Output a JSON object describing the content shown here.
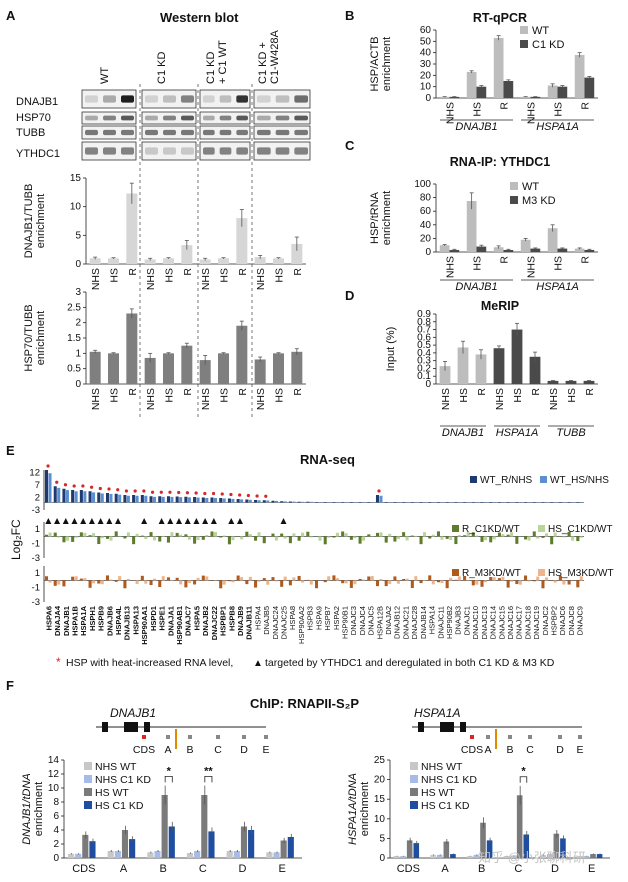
{
  "panels": {
    "A": "A",
    "B": "B",
    "C": "C",
    "D": "D",
    "E": "E",
    "F": "F"
  },
  "panel_a": {
    "title": "Western blot",
    "conditions": [
      "WT",
      "C1 KD",
      "C1 KD\n+ C1 WT",
      "C1 KD +\nC1-W428A"
    ],
    "blot_labels": [
      "DNAJB1",
      "HSP70",
      "TUBB",
      "YTHDC1"
    ],
    "treatments": [
      "NHS",
      "HS",
      "R"
    ]
  },
  "chart_data": [
    {
      "id": "A-top",
      "type": "bar",
      "ylabel": "DNAJB1/TUBB\nenrichment",
      "ylim": [
        0,
        15
      ],
      "yticks": [
        0,
        5,
        10,
        15
      ],
      "categories": [
        "NHS",
        "HS",
        "R",
        "NHS",
        "HS",
        "R",
        "NHS",
        "HS",
        "R",
        "NHS",
        "HS",
        "R"
      ],
      "values": [
        1,
        1,
        12.3,
        0.8,
        1,
        3.3,
        0.8,
        1,
        8,
        1.2,
        1,
        3.5
      ],
      "errors": [
        0.2,
        0.1,
        1.8,
        0.2,
        0.1,
        0.8,
        0.2,
        0.1,
        1.5,
        0.3,
        0.1,
        1.2
      ],
      "color": "#d6d6d6"
    },
    {
      "id": "A-bottom",
      "type": "bar",
      "ylabel": "HSP70/TUBB\nenrichment",
      "ylim": [
        0,
        3
      ],
      "yticks": [
        0,
        0.5,
        1,
        1.5,
        2,
        2.5,
        3
      ],
      "categories": [
        "NHS",
        "HS",
        "R",
        "NHS",
        "HS",
        "R",
        "NHS",
        "HS",
        "R",
        "NHS",
        "HS",
        "R"
      ],
      "values": [
        1.05,
        1,
        2.3,
        0.85,
        1,
        1.25,
        0.78,
        1,
        1.9,
        0.8,
        1,
        1.05
      ],
      "errors": [
        0.05,
        0.02,
        0.15,
        0.15,
        0.02,
        0.08,
        0.15,
        0.02,
        0.15,
        0.08,
        0.02,
        0.1
      ],
      "color": "#7f7f7f"
    },
    {
      "id": "B",
      "type": "bar",
      "title": "RT-qPCR",
      "ylabel": "HSP/ACTB\nenrichment",
      "ylim": [
        0,
        60
      ],
      "yticks": [
        0,
        10,
        20,
        30,
        40,
        50,
        60
      ],
      "categories": [
        "NHS",
        "HS",
        "R",
        "NHS",
        "HS",
        "R"
      ],
      "groups": [
        "DNAJB1",
        "HSPA1A"
      ],
      "series": [
        {
          "name": "WT",
          "values": [
            1,
            23,
            53,
            1,
            11,
            38
          ],
          "errors": [
            0.2,
            1,
            2,
            0.2,
            1.5,
            2
          ],
          "color": "#bdbdbd"
        },
        {
          "name": "C1 KD",
          "values": [
            1,
            10,
            15,
            1,
            10,
            18
          ],
          "errors": [
            0.2,
            1,
            1,
            0.2,
            1,
            1
          ],
          "color": "#4a4a4a"
        }
      ]
    },
    {
      "id": "C",
      "type": "bar",
      "title": "RNA-IP: YTHDC1",
      "ylabel": "HSP/tRNA\nenrichment",
      "ylim": [
        0,
        100
      ],
      "yticks": [
        0,
        20,
        40,
        60,
        80,
        100
      ],
      "categories": [
        "NHS",
        "HS",
        "R",
        "NHS",
        "HS",
        "R"
      ],
      "groups": [
        "DNAJB1",
        "HSPA1A"
      ],
      "series": [
        {
          "name": "WT",
          "values": [
            10,
            75,
            7,
            18,
            35,
            5
          ],
          "errors": [
            1,
            12,
            2,
            2,
            5,
            1
          ],
          "color": "#bdbdbd"
        },
        {
          "name": "M3 KD",
          "values": [
            3,
            8,
            3,
            5,
            5,
            3
          ],
          "errors": [
            1,
            2,
            1,
            1,
            1,
            1
          ],
          "color": "#4a4a4a"
        }
      ]
    },
    {
      "id": "D",
      "type": "bar",
      "title": "MeRIP",
      "ylabel": "Input (%)",
      "ylim": [
        0,
        0.9
      ],
      "yticks": [
        0,
        0.1,
        0.2,
        0.3,
        0.4,
        0.5,
        0.6,
        0.7,
        0.8,
        0.9
      ],
      "categories": [
        "NHS",
        "HS",
        "R",
        "NHS",
        "HS",
        "R",
        "NHS",
        "HS",
        "R"
      ],
      "groups": [
        "DNAJB1",
        "HSPA1A",
        "TUBB"
      ],
      "values": [
        0.23,
        0.47,
        0.38,
        0.46,
        0.7,
        0.35,
        0.04,
        0.04,
        0.04
      ],
      "errors": [
        0.06,
        0.08,
        0.06,
        0.03,
        0.08,
        0.06,
        0.005,
        0.005,
        0.005
      ],
      "colors": [
        "#bdbdbd",
        "#bdbdbd",
        "#bdbdbd",
        "#4a4a4a",
        "#4a4a4a",
        "#4a4a4a",
        "#4a4a4a",
        "#4a4a4a",
        "#4a4a4a"
      ]
    }
  ],
  "panel_e": {
    "title": "RNA-seq",
    "ylabel": "Log₂FC",
    "yticks_top": [
      "12",
      "7",
      "2",
      "-3"
    ],
    "yticks_mid": [
      "1",
      "-1",
      "-3"
    ],
    "yticks_bot": [
      "1",
      "-1",
      "-3"
    ],
    "legend_top": [
      "WT_R/NHS",
      "WT_HS/NHS"
    ],
    "legend_mid": [
      "R_C1KD/WT",
      "HS_C1KD/WT"
    ],
    "legend_bot": [
      "R_M3KD/WT",
      "HS_M3KD/WT"
    ],
    "genes": [
      "HSPA6",
      "DNAJA4",
      "DNAJB1",
      "HSPA1B",
      "HSPA1A",
      "HSPH1",
      "HSPB9",
      "DNAJB6",
      "HSPA4L",
      "DNAJB13",
      "HSPA13",
      "HSP90AA1",
      "HSPD1",
      "HSPE1",
      "DNAJA1",
      "HSP90AB1",
      "DNAJC7",
      "HSPA5",
      "DNAJB2",
      "DNAJC22",
      "HSPBP1",
      "HSPB8",
      "DNAJB9",
      "DNAJB11",
      "HSPA4",
      "DNAJB5",
      "DNAJC24",
      "DNAJC25",
      "HSPA8",
      "HSP90AA2",
      "HSPB3",
      "HSPA9",
      "HSPB7",
      "HSPA2",
      "HSP90B1",
      "DNAJC3",
      "DNAJC4",
      "DNAJC5",
      "HSPA12B",
      "DNAJA2",
      "DNAJB12",
      "DNAJC21",
      "DNAJC28",
      "DNAJB14",
      "HSPA14",
      "DNAJC11",
      "HSP90B2",
      "DNAJB3",
      "DNAJC1",
      "DNAJC10",
      "DNAJC13",
      "DNAJC14",
      "DNAJC15",
      "DNAJC16",
      "DNAJC17",
      "DNAJC18",
      "DNAJC19",
      "DNAJC2",
      "HSPBP2",
      "DNAJC6",
      "DNAJC8",
      "DNAJC9"
    ],
    "top_values": [
      13,
      6.5,
      5.5,
      5,
      5,
      4.5,
      4,
      3.8,
      3.5,
      3,
      3,
      3,
      2.5,
      2.5,
      2.5,
      2.4,
      2.3,
      2.2,
      2,
      2,
      1.8,
      1.6,
      1.4,
      1.2,
      1,
      0.9,
      0.7,
      0.5,
      0.4,
      0.3,
      0.3,
      0.2,
      0.2,
      0.2,
      0.2,
      0.1,
      0.1,
      0.1,
      3,
      0.1,
      0.1,
      0.1,
      0.1,
      0.1,
      0.1,
      0.1,
      0.1,
      0.1,
      0.1,
      0.1,
      0.1,
      0.1,
      0.1,
      0.1,
      0.1,
      0.1,
      0.1,
      0.1,
      0.1,
      0.1,
      0.1,
      0.1
    ],
    "footnote_star": "*",
    "footnote_tri": "▲",
    "footnote": "HSP with heat-increased RNA level,",
    "footnote2": "targeted by YTHDC1 and deregulated in both C1 KD & M3 KD"
  },
  "panel_f": {
    "title": "ChIP: RNAPII-S₂P",
    "left_gene": "DNAJB1",
    "right_gene": "HSPA1A",
    "regions": [
      "CDS",
      "A",
      "B",
      "C",
      "D",
      "E"
    ],
    "legend": [
      "NHS  WT",
      "NHS  C1 KD",
      "HS  WT",
      "HS  C1 KD"
    ],
    "left_ylabel": "DNAJB1/tDNA\nenrichment",
    "right_ylabel": "HSPA1A/tDNA\nenrichment",
    "left_yticks": [
      "0",
      "2",
      "4",
      "6",
      "8",
      "10",
      "12",
      "14"
    ],
    "right_yticks": [
      "0",
      "5",
      "10",
      "15",
      "20",
      "25"
    ],
    "left_values": [
      [
        0.6,
        0.6,
        3.3,
        2.4
      ],
      [
        1,
        1,
        4,
        2.7
      ],
      [
        0.8,
        1,
        9,
        4.5
      ],
      [
        0.7,
        1,
        9,
        3.8
      ],
      [
        1,
        1,
        4.5,
        4
      ],
      [
        0.8,
        0.8,
        2.5,
        3
      ]
    ],
    "right_values": [
      [
        0.5,
        0.5,
        4.5,
        3.8
      ],
      [
        0.8,
        0.8,
        4.2,
        1
      ],
      [
        0.5,
        0.8,
        9,
        4.5
      ],
      [
        0.5,
        0.6,
        16,
        6
      ],
      [
        0.8,
        1,
        6.2,
        5
      ],
      [
        0.5,
        0.5,
        1,
        1
      ]
    ],
    "sig_left": [
      "*",
      "**"
    ],
    "sig_right": [
      "*"
    ],
    "colors": [
      "#c7c7c7",
      "#a6bce6",
      "#7a7a7a",
      "#1f4ea0"
    ]
  },
  "watermark": "知乎 @小张聊科研"
}
